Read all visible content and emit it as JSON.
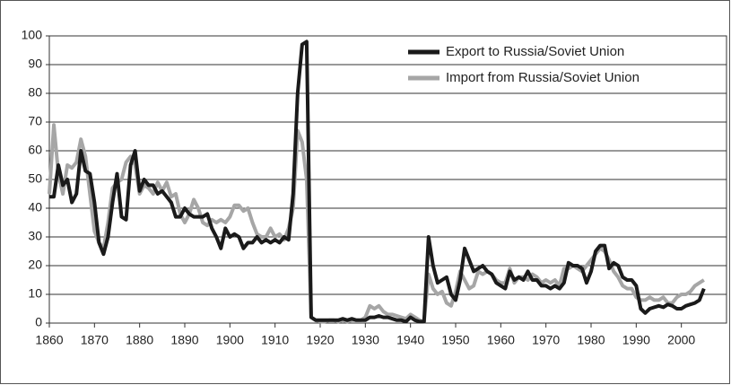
{
  "chart_data": {
    "type": "line",
    "x": [
      1860,
      1861,
      1862,
      1863,
      1864,
      1865,
      1866,
      1867,
      1868,
      1869,
      1870,
      1871,
      1872,
      1873,
      1874,
      1875,
      1876,
      1877,
      1878,
      1879,
      1880,
      1881,
      1882,
      1883,
      1884,
      1885,
      1886,
      1887,
      1888,
      1889,
      1890,
      1891,
      1892,
      1893,
      1894,
      1895,
      1896,
      1897,
      1898,
      1899,
      1900,
      1901,
      1902,
      1903,
      1904,
      1905,
      1906,
      1907,
      1908,
      1909,
      1910,
      1911,
      1912,
      1913,
      1914,
      1915,
      1916,
      1917,
      1918,
      1919,
      1920,
      1921,
      1922,
      1923,
      1924,
      1925,
      1926,
      1927,
      1928,
      1929,
      1930,
      1931,
      1932,
      1933,
      1934,
      1935,
      1936,
      1937,
      1938,
      1939,
      1940,
      1941,
      1942,
      1943,
      1944,
      1945,
      1946,
      1947,
      1948,
      1949,
      1950,
      1951,
      1952,
      1953,
      1954,
      1955,
      1956,
      1957,
      1958,
      1959,
      1960,
      1961,
      1962,
      1963,
      1964,
      1965,
      1966,
      1967,
      1968,
      1969,
      1970,
      1971,
      1972,
      1973,
      1974,
      1975,
      1976,
      1977,
      1978,
      1979,
      1980,
      1981,
      1982,
      1983,
      1984,
      1985,
      1986,
      1987,
      1988,
      1989,
      1990,
      1991,
      1992,
      1993,
      1994,
      1995,
      1996,
      1997,
      1998,
      1999,
      2000,
      2001,
      2002,
      2003,
      2004,
      2005
    ],
    "series": [
      {
        "name": "Export to Russia/Soviet Union",
        "color": "#1a1a1a",
        "values": [
          44,
          44,
          55,
          48,
          50,
          42,
          45,
          60,
          53,
          52,
          42,
          28,
          24,
          30,
          42,
          52,
          37,
          36,
          55,
          60,
          46,
          50,
          48,
          48,
          45,
          46,
          44,
          42,
          37,
          37,
          40,
          38,
          37,
          37,
          37,
          38,
          33,
          30,
          26,
          33,
          30,
          31,
          30,
          26,
          28,
          28,
          30,
          28,
          29,
          28,
          29,
          28,
          30,
          29,
          45,
          80,
          97,
          98,
          2,
          1,
          1,
          1,
          1,
          1,
          1,
          1.5,
          1,
          1.5,
          1,
          1,
          1,
          2,
          2,
          2.5,
          2,
          2,
          1.5,
          1,
          1,
          0.5,
          2,
          1,
          0.5,
          0.5,
          30,
          20,
          14,
          15,
          16,
          10,
          8,
          15,
          26,
          22,
          18,
          19,
          20,
          18,
          17,
          14,
          13,
          12,
          18,
          15,
          16,
          15,
          18,
          15,
          15,
          13,
          13,
          12,
          13,
          12,
          14,
          21,
          20,
          20,
          19,
          14,
          18,
          25,
          27,
          27,
          19,
          21,
          20,
          16,
          15,
          15,
          13,
          5,
          3.5,
          5,
          5.5,
          6,
          5.5,
          6.5,
          6,
          5,
          5,
          6,
          6.5,
          7,
          8,
          12
        ]
      },
      {
        "name": "Import from Russia/Soviet Union",
        "color": "#a6a6a6",
        "values": [
          45,
          69,
          52,
          45,
          55,
          54,
          56,
          64,
          58,
          45,
          32,
          28,
          26,
          35,
          47,
          49,
          50,
          56,
          58,
          55,
          45,
          48,
          47,
          45,
          49,
          46,
          49,
          44,
          45,
          38,
          35,
          38,
          43,
          40,
          35,
          34,
          36,
          35,
          36,
          35,
          37,
          41,
          41,
          39,
          40,
          35,
          31,
          30,
          30,
          33,
          30,
          31,
          29,
          33,
          40,
          67,
          63,
          50,
          2,
          1,
          0.5,
          0.5,
          1,
          1,
          0.5,
          1,
          0.5,
          1,
          1,
          1,
          2,
          6,
          5,
          6,
          4,
          3,
          3,
          2.5,
          2,
          1.5,
          3,
          2,
          1,
          0.5,
          17,
          12,
          10,
          11,
          7,
          6,
          11,
          18,
          15,
          12,
          13,
          18,
          17,
          18,
          17,
          15,
          14,
          14,
          19,
          14,
          16,
          16,
          15,
          17,
          16,
          14,
          15,
          14,
          15,
          13,
          19,
          19,
          20,
          19,
          18,
          20,
          22,
          24,
          26,
          25,
          22,
          18,
          16,
          13,
          12,
          12,
          9,
          8,
          8,
          9,
          8,
          8,
          9,
          7,
          7,
          9,
          10,
          10,
          11,
          13,
          14,
          15
        ]
      }
    ],
    "xlim": [
      1860,
      2010
    ],
    "xticks": [
      1860,
      1870,
      1880,
      1890,
      1900,
      1910,
      1920,
      1930,
      1940,
      1950,
      1960,
      1970,
      1980,
      1990,
      2000
    ],
    "ylim": [
      0,
      100
    ],
    "yticks": [
      0,
      10,
      20,
      30,
      40,
      50,
      60,
      70,
      80,
      90,
      100
    ],
    "grid": true,
    "legend": "top-right"
  }
}
